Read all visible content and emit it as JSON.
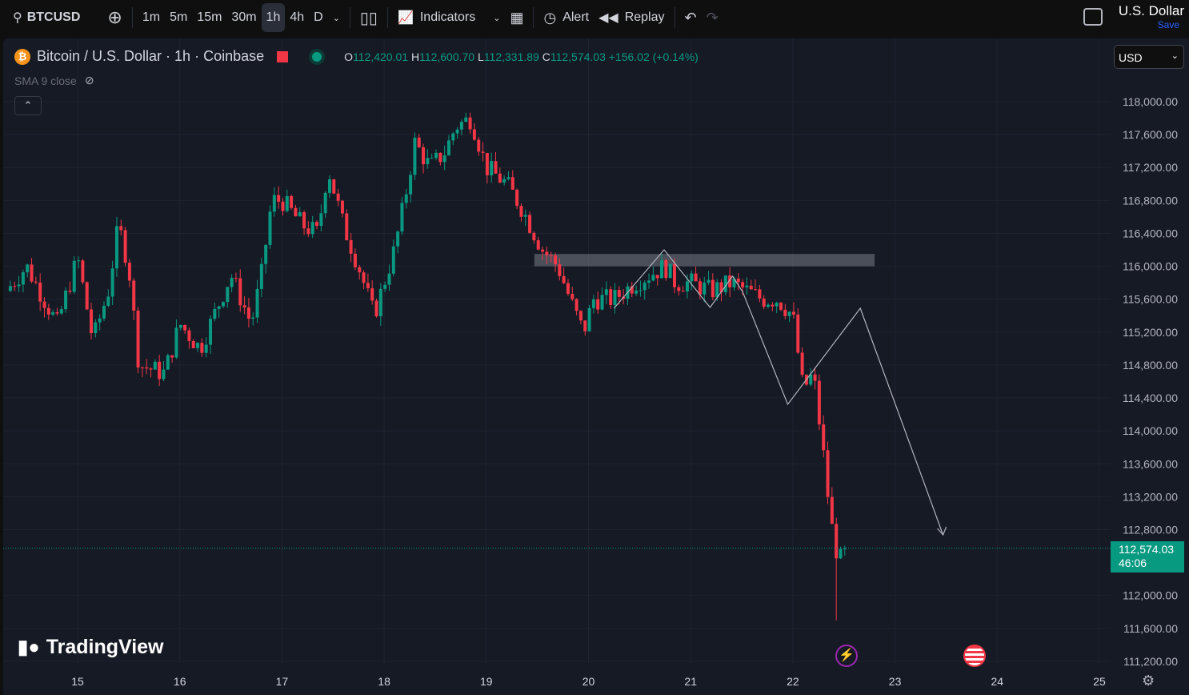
{
  "toolbar": {
    "symbol": "BTCUSD",
    "intervals": [
      "1m",
      "5m",
      "15m",
      "30m",
      "1h",
      "4h",
      "D"
    ],
    "active_interval": "1h",
    "indicators": "Indicators",
    "alert": "Alert",
    "replay": "Replay",
    "currency_title": "U.S. Dollar",
    "save": "Save"
  },
  "legend": {
    "title": "Bitcoin / U.S. Dollar · 1h · Coinbase",
    "o_label": "O",
    "o": "112,420.01",
    "h_label": "H",
    "h": "112,600.70",
    "l_label": "L",
    "l": "112,331.89",
    "c_label": "C",
    "c": "112,574.03",
    "change": "+156.02 (+0.14%)",
    "sma": "SMA 9 close"
  },
  "currency_select": "USD",
  "last_price": {
    "price": "112,574.03",
    "countdown": "46:06"
  },
  "logo": "TradingView",
  "colors": {
    "up": "#089981",
    "down": "#f23645",
    "bg": "#161a25",
    "grid": "#1f2330"
  },
  "chart_data": {
    "type": "candlestick",
    "y_ticks": [
      118000,
      117600,
      117200,
      116800,
      116400,
      116000,
      115600,
      115200,
      114800,
      114400,
      114000,
      113600,
      113200,
      112800,
      112000,
      111600,
      111200
    ],
    "x_ticks": [
      "15",
      "16",
      "17",
      "18",
      "19",
      "20",
      "21",
      "22",
      "23",
      "24",
      "25"
    ],
    "ylim": [
      111050,
      118650
    ],
    "xlim": [
      14.3,
      25.1
    ],
    "price_path": [
      [
        14.3,
        115700
      ],
      [
        14.5,
        116000
      ],
      [
        14.8,
        115300
      ],
      [
        15.0,
        116100
      ],
      [
        15.15,
        115100
      ],
      [
        15.3,
        115700
      ],
      [
        15.4,
        116500
      ],
      [
        15.5,
        116000
      ],
      [
        15.6,
        114800
      ],
      [
        15.85,
        114700
      ],
      [
        16.0,
        115300
      ],
      [
        16.2,
        115000
      ],
      [
        16.4,
        115600
      ],
      [
        16.5,
        115900
      ],
      [
        16.7,
        115300
      ],
      [
        16.8,
        115900
      ],
      [
        16.9,
        116800
      ],
      [
        17.0,
        116800
      ],
      [
        17.2,
        116500
      ],
      [
        17.35,
        116400
      ],
      [
        17.45,
        117200
      ],
      [
        17.6,
        116500
      ],
      [
        17.75,
        116000
      ],
      [
        17.9,
        115400
      ],
      [
        18.0,
        115800
      ],
      [
        18.1,
        116200
      ],
      [
        18.2,
        116800
      ],
      [
        18.3,
        117500
      ],
      [
        18.45,
        117200
      ],
      [
        18.6,
        117400
      ],
      [
        18.7,
        117700
      ],
      [
        18.85,
        117800
      ],
      [
        19.0,
        117200
      ],
      [
        19.2,
        117000
      ],
      [
        19.35,
        116700
      ],
      [
        19.55,
        116200
      ],
      [
        19.7,
        116000
      ],
      [
        19.85,
        115500
      ],
      [
        19.95,
        115200
      ],
      [
        20.05,
        115600
      ],
      [
        20.25,
        115600
      ],
      [
        20.45,
        115800
      ],
      [
        20.6,
        115900
      ],
      [
        20.75,
        116000
      ],
      [
        20.85,
        115800
      ],
      [
        21.0,
        115800
      ],
      [
        21.2,
        115700
      ],
      [
        21.4,
        115800
      ],
      [
        21.55,
        115700
      ],
      [
        21.7,
        115600
      ],
      [
        21.85,
        115600
      ],
      [
        22.0,
        115400
      ],
      [
        22.1,
        114500
      ],
      [
        22.2,
        114700
      ],
      [
        22.3,
        113700
      ],
      [
        22.37,
        112900
      ],
      [
        22.45,
        112400
      ],
      [
        22.53,
        112574
      ]
    ],
    "zone": {
      "x": [
        19.47,
        22.8
      ],
      "y": [
        116000,
        116150
      ]
    },
    "drawing_path": [
      [
        20.25,
        115490
      ],
      [
        20.74,
        116200
      ],
      [
        21.19,
        115500
      ],
      [
        21.41,
        115880
      ],
      [
        21.51,
        115685
      ],
      [
        21.95,
        114323
      ],
      [
        22.66,
        115490
      ],
      [
        23.47,
        112737
      ]
    ],
    "last": 112574
  }
}
